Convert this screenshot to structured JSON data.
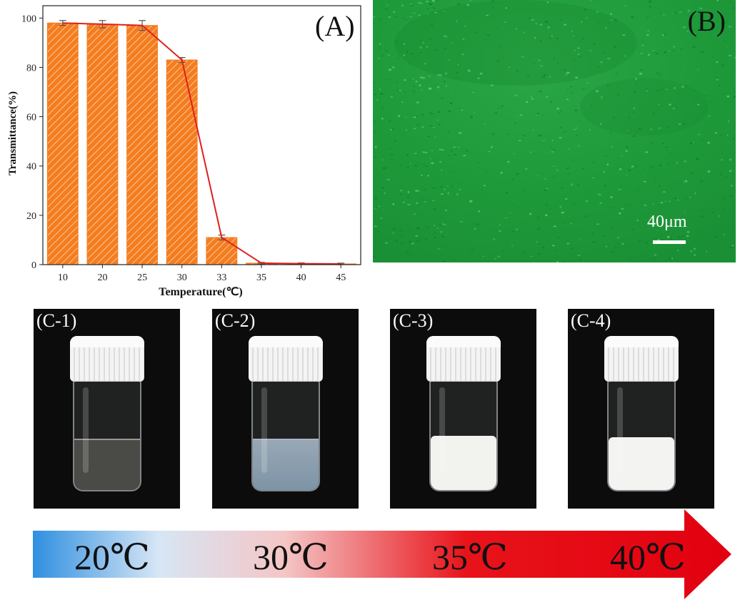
{
  "chart_data": {
    "type": "bar",
    "panel_label": "(A)",
    "categories": [
      "10",
      "20",
      "25",
      "30",
      "33",
      "35",
      "40",
      "45"
    ],
    "values": [
      98,
      97.5,
      97,
      83,
      11,
      0.6,
      0.4,
      0.3
    ],
    "error": [
      1,
      1.5,
      2,
      1,
      1,
      0.3,
      0.3,
      0.3
    ],
    "xlabel": "Temperature(℃)",
    "ylabel": "Transmittance(%)",
    "ylim": [
      0,
      105
    ],
    "yticks": [
      "0",
      "20",
      "40",
      "60",
      "80",
      "100"
    ],
    "bar_color": "#f47d20",
    "line_color": "#e0201c",
    "grid": false
  },
  "panel_b": {
    "label": "(B)",
    "scale_text": "40μm",
    "background_color": "#1f9a3c"
  },
  "photos": [
    {
      "label": "(C-1)",
      "liquid": "clear"
    },
    {
      "label": "(C-2)",
      "liquid": "bluish"
    },
    {
      "label": "(C-3)",
      "liquid": "milky"
    },
    {
      "label": "(C-4)",
      "liquid": "milky"
    }
  ],
  "temperature_arrow": {
    "labels": [
      "20℃",
      "30℃",
      "35℃",
      "40℃"
    ],
    "gradient_colors": [
      "#2f8fe0",
      "#d7e6f5",
      "#f4c6c6",
      "#e8131a",
      "#e2000f"
    ]
  }
}
